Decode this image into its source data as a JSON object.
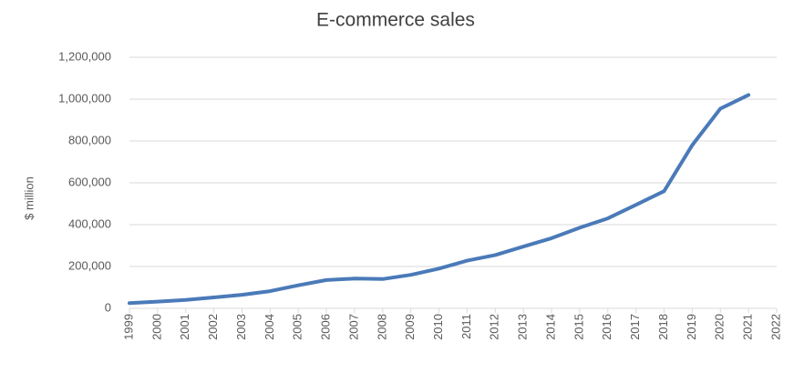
{
  "chart_data": {
    "type": "line",
    "title": "E-commerce sales",
    "y_label": "$ million",
    "x": [
      1999,
      2000,
      2001,
      2002,
      2003,
      2004,
      2005,
      2006,
      2007,
      2008,
      2009,
      2010,
      2011,
      2012,
      2013,
      2014,
      2015,
      2016,
      2017,
      2018,
      2019,
      2020,
      2021
    ],
    "series": [
      {
        "name": "E-commerce sales",
        "color": "#4a7ab8",
        "values": [
          25000,
          32000,
          40000,
          52000,
          65000,
          82000,
          110000,
          135000,
          142000,
          140000,
          160000,
          190000,
          228000,
          255000,
          295000,
          335000,
          385000,
          430000,
          495000,
          560000,
          780000,
          955000,
          1020000
        ]
      }
    ],
    "xlim": [
      1999,
      2022
    ],
    "xticks": [
      1999,
      2000,
      2001,
      2002,
      2003,
      2004,
      2005,
      2006,
      2007,
      2008,
      2009,
      2010,
      2011,
      2012,
      2013,
      2014,
      2015,
      2016,
      2017,
      2018,
      2019,
      2020,
      2021,
      2022
    ],
    "ylim": [
      0,
      1200000
    ],
    "yticks": [
      0,
      {
        "value": 200000,
        "label": "200,000"
      },
      {
        "value": 400000,
        "label": "400,000"
      },
      {
        "value": 600000,
        "label": "600,000"
      },
      {
        "value": 800000,
        "label": "800,000"
      },
      {
        "value": 1000000,
        "label": "1,000,000"
      },
      {
        "value": 1200000,
        "label": "1,200,000"
      }
    ],
    "grid": true
  }
}
